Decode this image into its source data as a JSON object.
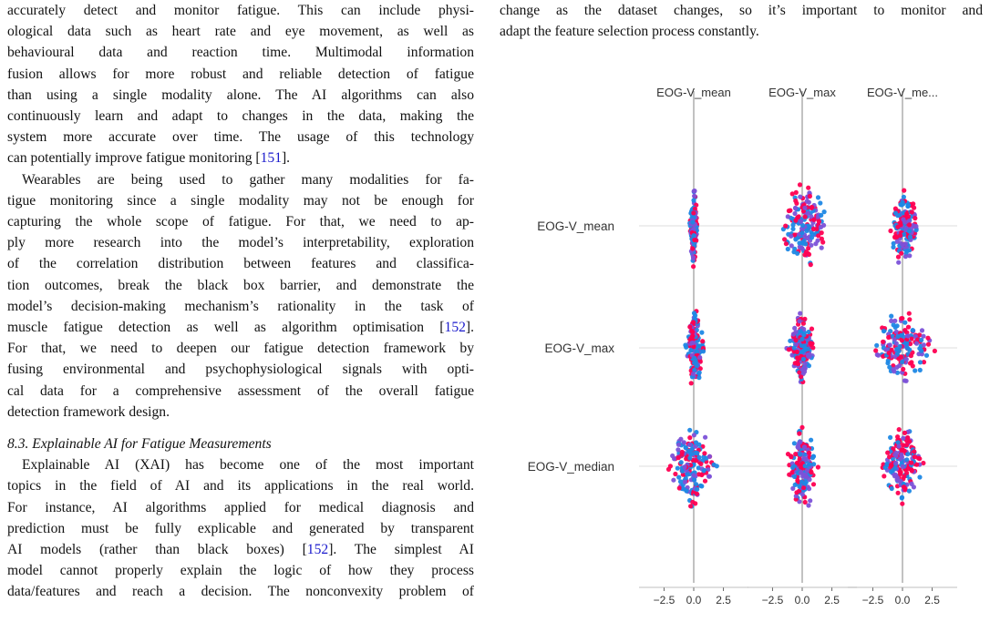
{
  "left_column": {
    "para1_lines": [
      "accurately detect and monitor fatigue. This can include physi-",
      "ological data such as heart rate and eye movement, as well as",
      "behavioural data and reaction time. Multimodal information",
      "fusion allows for more robust and reliable detection of fatigue",
      "than using a single modality alone. The AI algorithms can also",
      "continuously learn and adapt to changes in the data, making the",
      "system more accurate over time. The usage of this technology",
      "can potentially improve fatigue monitoring ["
    ],
    "cite_151": "151",
    "para1_end": "].",
    "para2_lines": [
      "Wearables are being used to gather many modalities for fa-",
      "tigue monitoring since a single modality may not be enough for",
      "capturing the whole scope of fatigue. For that, we need to ap-",
      "ply more research into the model’s interpretability, exploration",
      "of the correlation distribution between features and classifica-",
      "tion outcomes, break the black box barrier, and demonstrate the",
      "model’s decision-making mechanism’s rationality in the task of",
      "muscle fatigue detection as well as algorithm optimisation ["
    ],
    "cite_152a": "152",
    "para2_mid": "].",
    "para2_rest_lines": [
      "For that, we need to deepen our fatigue detection framework by",
      "fusing environmental and psychophysiological signals with opti-",
      "cal data for a comprehensive assessment of the overall fatigue",
      "detection framework design."
    ],
    "section_heading": "8.3.  Explainable AI for Fatigue Measurements",
    "para3_lines": [
      "Explainable AI (XAI) has become one of the most important",
      "topics in the field of AI and its applications in the real world.",
      "For instance, AI algorithms applied for medical diagnosis and",
      "prediction must be fully explicable and generated by transparent",
      "AI models (rather than black boxes) ["
    ],
    "cite_152b": "152",
    "para3_after_cite": "]. The simplest AI",
    "para3_rest_lines": [
      "model cannot properly explain the logic of how they process",
      "data/features and reach a decision. The nonconvexity problem of"
    ]
  },
  "right_column": {
    "lines": [
      "change as the dataset changes, so it’s important to monitor and",
      "adapt the feature selection process constantly."
    ]
  },
  "chart_data": {
    "type": "scatter",
    "subtype": "shap-interaction-beeswarm-matrix",
    "column_titles": [
      "EOG-V_mean",
      "EOG-V_max",
      "EOG-V_me..."
    ],
    "row_labels": [
      "EOG-V_mean",
      "EOG-V_max",
      "EOG-V_median"
    ],
    "xticks": [
      "−2.5",
      "0.0",
      "2.5"
    ],
    "xlim": [
      -4.3,
      4.3
    ],
    "grid": true,
    "colors": {
      "low": "#1e88e5",
      "mid": "#7c52d8",
      "high": "#ff0052",
      "axis": "#999999",
      "guide": "#dddddd"
    },
    "cells": [
      {
        "row": 0,
        "col": 0,
        "spread": 0.35,
        "height": 50,
        "lean": 0.0
      },
      {
        "row": 0,
        "col": 1,
        "spread": 2.6,
        "height": 52,
        "lean": 0.2
      },
      {
        "row": 0,
        "col": 2,
        "spread": 1.5,
        "height": 48,
        "lean": 0.1
      },
      {
        "row": 1,
        "col": 0,
        "spread": 0.9,
        "height": 48,
        "lean": 0.1
      },
      {
        "row": 1,
        "col": 1,
        "spread": 1.4,
        "height": 45,
        "lean": 0.0
      },
      {
        "row": 1,
        "col": 2,
        "spread": 3.2,
        "height": 45,
        "lean": 0.0
      },
      {
        "row": 2,
        "col": 0,
        "spread": 2.2,
        "height": 52,
        "lean": -0.1
      },
      {
        "row": 2,
        "col": 1,
        "spread": 1.6,
        "height": 52,
        "lean": 0.0
      },
      {
        "row": 2,
        "col": 2,
        "spread": 2.0,
        "height": 50,
        "lean": 0.0
      }
    ]
  }
}
